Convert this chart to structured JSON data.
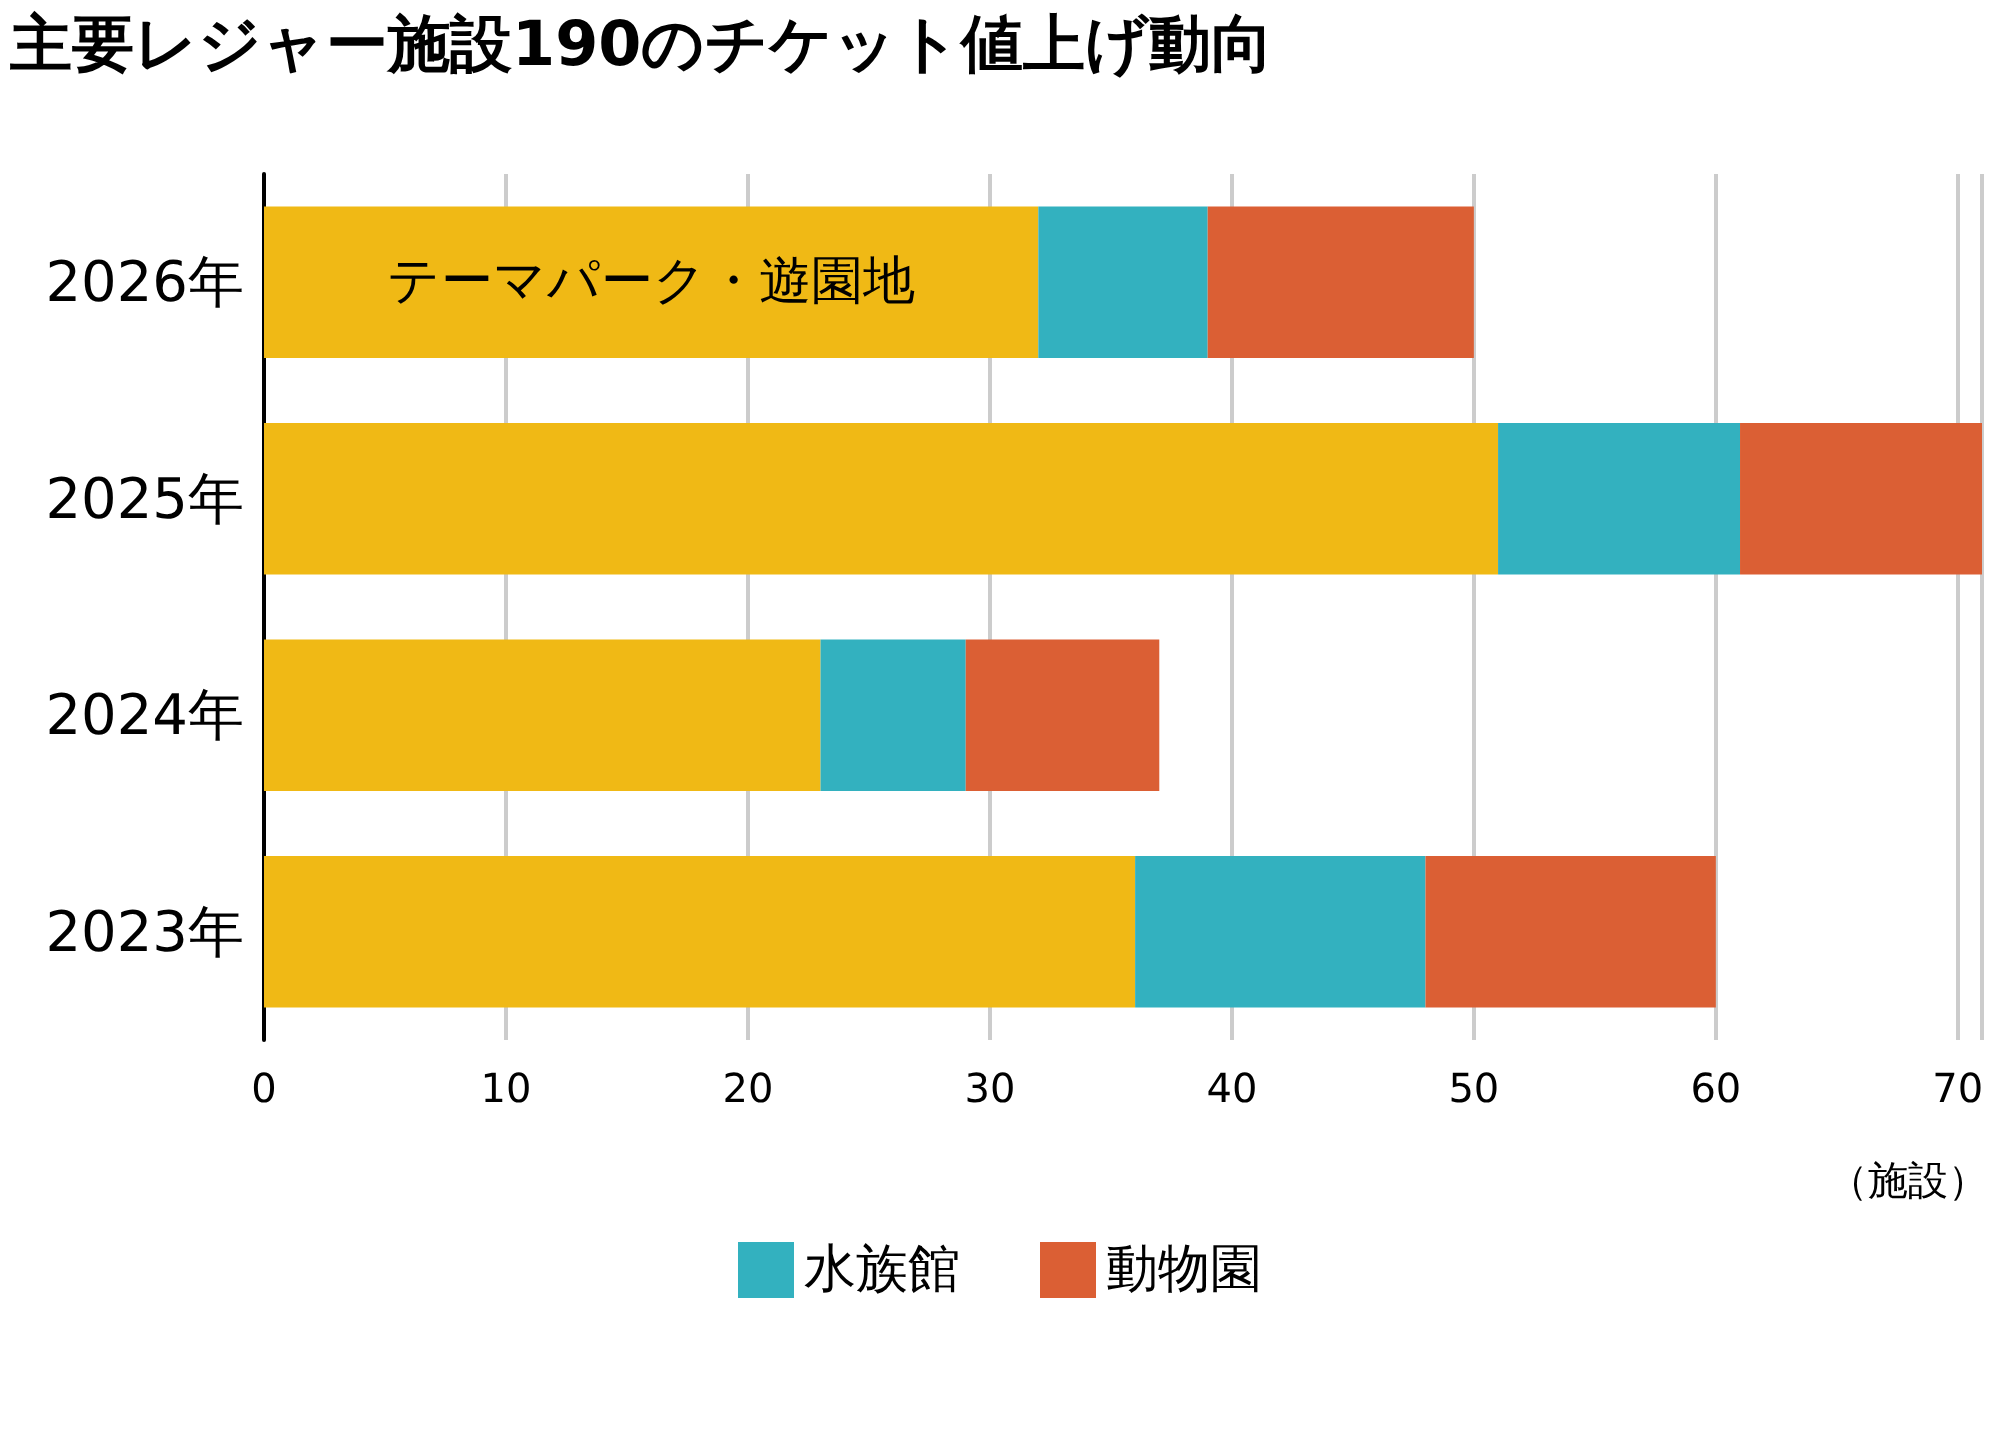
{
  "chart_data": {
    "type": "bar",
    "title": "主要レジャー施設190のチケット値上げ動向",
    "xlabel": "（施設）",
    "orientation": "horizontal",
    "stacked": true,
    "categories": [
      "2026年",
      "2025年",
      "2024年",
      "2023年"
    ],
    "series": [
      {
        "name": "テーマパーク・遊園地",
        "color": "#f0b915",
        "values": [
          32,
          51,
          23,
          36
        ]
      },
      {
        "name": "水族館",
        "color": "#33b1bf",
        "values": [
          7,
          10,
          6,
          12
        ]
      },
      {
        "name": "動物園",
        "color": "#db5f34",
        "values": [
          11,
          10,
          8,
          12
        ]
      }
    ],
    "xlim": [
      0,
      71
    ],
    "xticks": [
      0,
      10,
      20,
      30,
      40,
      50,
      60,
      70
    ],
    "grid": "x",
    "legend": "bottom"
  }
}
